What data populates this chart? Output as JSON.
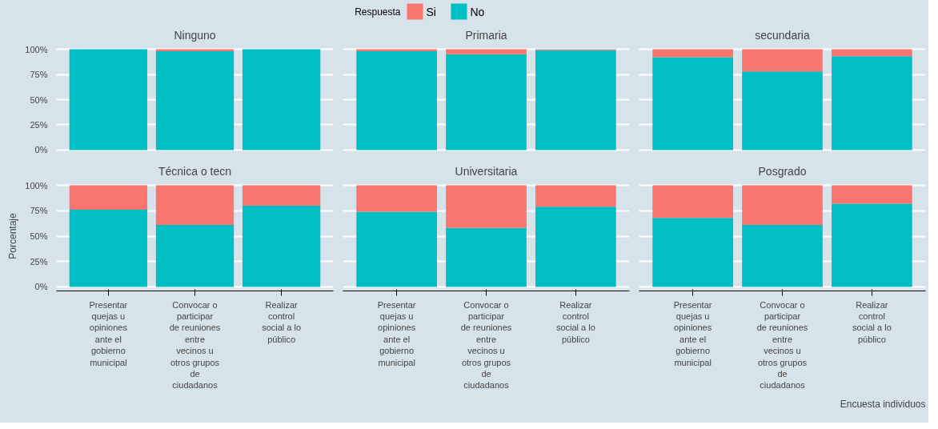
{
  "chart_data": [
    {
      "type": "bar",
      "title": "Ninguno",
      "stacked": true,
      "legend": "top",
      "legend_title": "Respuesta",
      "grid": "y",
      "tick_labels": "y",
      "categories": [
        "Presentar quejas u opiniones ante el gobierno municipal",
        "Convocar o participar de reuniones entre vecinos u otros grupos de ciudadanos",
        "Realizar control social a lo público"
      ],
      "ylim": [
        0,
        100
      ],
      "yticks": [
        {
          "value": 0,
          "label": "0%"
        },
        {
          "value": 25,
          "label": "25%"
        },
        {
          "value": 50,
          "label": "50%"
        },
        {
          "value": 75,
          "label": "75%"
        },
        {
          "value": 100,
          "label": "100%"
        }
      ],
      "series": [
        {
          "name": "No",
          "color": "#00bfc4",
          "values": [
            100,
            98,
            100
          ]
        },
        {
          "name": "Si",
          "color": "#f8766d",
          "values": [
            0,
            2,
            0
          ]
        }
      ]
    },
    {
      "type": "bar",
      "title": "Primaria",
      "stacked": true,
      "grid": "y",
      "tick_labels": false,
      "categories": [
        "Presentar quejas u opiniones ante el gobierno municipal",
        "Convocar o participar de reuniones entre vecinos u otros grupos de ciudadanos",
        "Realizar control social a lo público"
      ],
      "ylim": [
        0,
        100
      ],
      "yticks": [
        {
          "value": 0,
          "label": "0%"
        },
        {
          "value": 25,
          "label": "25%"
        },
        {
          "value": 50,
          "label": "50%"
        },
        {
          "value": 75,
          "label": "75%"
        },
        {
          "value": 100,
          "label": "100%"
        }
      ],
      "series": [
        {
          "color": "#00bfc4",
          "values": [
            98,
            95,
            99
          ]
        },
        {
          "color": "#f8766d",
          "values": [
            2,
            5,
            1
          ]
        }
      ]
    },
    {
      "type": "bar",
      "title": "secundaria",
      "stacked": true,
      "grid": "y",
      "tick_labels": false,
      "categories": [
        "Presentar quejas u opiniones ante el gobierno municipal",
        "Convocar o participar de reuniones entre vecinos u otros grupos de ciudadanos",
        "Realizar control social a lo público"
      ],
      "ylim": [
        0,
        100
      ],
      "yticks": [
        {
          "value": 0,
          "label": "0%"
        },
        {
          "value": 25,
          "label": "25%"
        },
        {
          "value": 50,
          "label": "50%"
        },
        {
          "value": 75,
          "label": "75%"
        },
        {
          "value": 100,
          "label": "100%"
        }
      ],
      "series": [
        {
          "color": "#00bfc4",
          "values": [
            92,
            78,
            93
          ]
        },
        {
          "color": "#f8766d",
          "values": [
            8,
            22,
            7
          ]
        }
      ]
    },
    {
      "type": "bar",
      "title": "Técnica o tecn",
      "ylabel": "Porcentaje",
      "stacked": true,
      "grid": "y",
      "categories": [
        "Presentar quejas u opiniones ante el gobierno municipal",
        "Convocar o participar de reuniones entre vecinos u otros grupos de ciudadanos",
        "Realizar control social a lo público"
      ],
      "ylim": [
        0,
        100
      ],
      "yticks": [
        {
          "value": 0,
          "label": "0%"
        },
        {
          "value": 25,
          "label": "25%"
        },
        {
          "value": 50,
          "label": "50%"
        },
        {
          "value": 75,
          "label": "75%"
        },
        {
          "value": 100,
          "label": "100%"
        }
      ],
      "series": [
        {
          "color": "#00bfc4",
          "values": [
            76,
            61,
            80
          ]
        },
        {
          "color": "#f8766d",
          "values": [
            24,
            39,
            20
          ]
        }
      ]
    },
    {
      "type": "bar",
      "title": "Universitaria",
      "stacked": true,
      "grid": "y",
      "tick_labels": "x",
      "categories": [
        "Presentar quejas u opiniones ante el gobierno municipal",
        "Convocar o participar de reuniones entre vecinos u otros grupos de ciudadanos",
        "Realizar control social a lo público"
      ],
      "ylim": [
        0,
        100
      ],
      "yticks": [
        {
          "value": 0,
          "label": "0%"
        },
        {
          "value": 25,
          "label": "25%"
        },
        {
          "value": 50,
          "label": "50%"
        },
        {
          "value": 75,
          "label": "75%"
        },
        {
          "value": 100,
          "label": "100%"
        }
      ],
      "series": [
        {
          "color": "#00bfc4",
          "values": [
            74,
            58,
            79
          ]
        },
        {
          "color": "#f8766d",
          "values": [
            26,
            42,
            21
          ]
        }
      ]
    },
    {
      "type": "bar",
      "title": "Posgrado",
      "stacked": true,
      "grid": "y",
      "tick_labels": "x",
      "annotations": [
        "Encuesta individuos"
      ],
      "categories": [
        "Presentar quejas u opiniones ante el gobierno municipal",
        "Convocar o participar de reuniones entre vecinos u otros grupos de ciudadanos",
        "Realizar control social a lo público"
      ],
      "ylim": [
        0,
        100
      ],
      "yticks": [
        {
          "value": 0,
          "label": "0%"
        },
        {
          "value": 25,
          "label": "25%"
        },
        {
          "value": 50,
          "label": "50%"
        },
        {
          "value": 75,
          "label": "75%"
        },
        {
          "value": 100,
          "label": "100%"
        }
      ],
      "series": [
        {
          "color": "#00bfc4",
          "values": [
            68,
            61,
            82
          ]
        },
        {
          "color": "#f8766d",
          "values": [
            32,
            39,
            18
          ]
        }
      ]
    }
  ]
}
